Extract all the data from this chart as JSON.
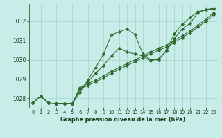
{
  "background_color": "#c8ece8",
  "plot_bg_color": "#c8ece8",
  "line_color": "#2d6a2d",
  "grid_color": "#a0d4cc",
  "text_color": "#1a3a1a",
  "xlabel": "Graphe pression niveau de la mer (hPa)",
  "xlim": [
    -0.5,
    23.5
  ],
  "ylim": [
    1027.5,
    1032.9
  ],
  "yticks": [
    1028,
    1029,
    1030,
    1031,
    1032
  ],
  "xticks": [
    0,
    1,
    2,
    3,
    4,
    5,
    6,
    7,
    8,
    9,
    10,
    11,
    12,
    13,
    14,
    15,
    16,
    17,
    18,
    19,
    20,
    21,
    22,
    23
  ],
  "lines": [
    {
      "x": [
        0,
        1,
        2,
        3,
        4,
        5,
        6,
        7,
        8,
        9,
        10,
        11,
        12,
        13,
        14,
        15,
        16,
        17,
        18,
        19,
        20,
        21,
        22,
        23
      ],
      "y": [
        1027.75,
        1028.1,
        1027.75,
        1027.7,
        1027.7,
        1027.7,
        1028.3,
        1028.95,
        1029.6,
        1030.3,
        1031.3,
        1031.45,
        1031.6,
        1031.3,
        1030.3,
        1030.0,
        1030.0,
        1030.5,
        1031.35,
        1031.85,
        1032.2,
        1032.5,
        1032.6,
        1032.65
      ]
    },
    {
      "x": [
        0,
        1,
        2,
        3,
        4,
        5,
        6,
        7,
        8,
        9,
        10,
        11,
        12,
        13,
        14,
        15,
        16,
        17,
        18,
        19,
        20,
        21,
        22,
        23
      ],
      "y": [
        1027.75,
        1028.1,
        1027.75,
        1027.7,
        1027.7,
        1027.7,
        1028.5,
        1028.65,
        1028.85,
        1029.05,
        1029.3,
        1029.5,
        1029.7,
        1029.9,
        1030.1,
        1030.3,
        1030.5,
        1030.65,
        1030.9,
        1031.15,
        1031.4,
        1031.7,
        1032.0,
        1032.35
      ]
    },
    {
      "x": [
        0,
        1,
        2,
        3,
        4,
        5,
        6,
        7,
        8,
        9,
        10,
        11,
        12,
        13,
        14,
        15,
        16,
        17,
        18,
        19,
        20,
        21,
        22,
        23
      ],
      "y": [
        1027.75,
        1028.1,
        1027.75,
        1027.7,
        1027.7,
        1027.7,
        1028.55,
        1028.75,
        1028.95,
        1029.15,
        1029.4,
        1029.6,
        1029.8,
        1030.0,
        1030.2,
        1030.4,
        1030.6,
        1030.75,
        1031.0,
        1031.25,
        1031.5,
        1031.8,
        1032.1,
        1032.45
      ]
    },
    {
      "x": [
        0,
        1,
        2,
        3,
        4,
        5,
        6,
        7,
        8,
        9,
        10,
        11,
        12,
        13,
        14,
        15,
        16,
        17,
        18,
        19,
        20,
        21,
        22,
        23
      ],
      "y": [
        1027.75,
        1028.1,
        1027.75,
        1027.7,
        1027.7,
        1027.7,
        1028.45,
        1028.85,
        1029.3,
        1029.7,
        1030.2,
        1030.6,
        1030.4,
        1030.3,
        1030.2,
        1029.95,
        1030.05,
        1030.45,
        1031.1,
        1031.6,
        1031.9,
        1032.45,
        1032.6,
        1032.7
      ]
    }
  ]
}
